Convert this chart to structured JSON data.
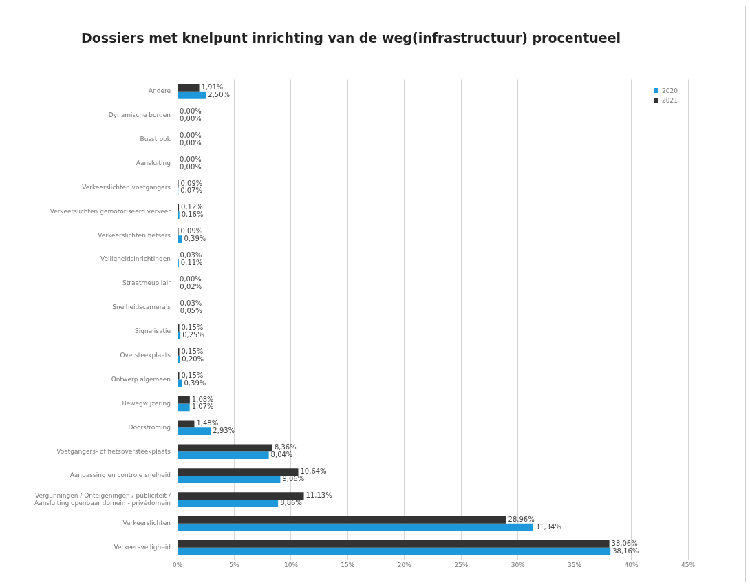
{
  "chart_data": {
    "type": "bar",
    "orientation": "horizontal",
    "title": "Dossiers met knelpunt inrichting van de weg(infrastructuur) procentueel",
    "categories": [
      "Andere",
      "Dynamische borden",
      "Busstrook",
      "Aansluiting",
      "Verkeerslichten voetgangers",
      "Verkeerslichten gemotoriseerd verkeer",
      "Verkeerslichten fietsers",
      "Veiligheidsinrichtingen",
      "Straatmeubilair",
      "Snelheidscamera's",
      "Signalisatie",
      "Oversteekplaats",
      "Ontwerp algemeen",
      "Bewegwijzering",
      "Doorstroming",
      "Voetgangers- of fietsoversteekplaats",
      "Aanpassing en controle snelheid",
      "Vergunningen / Onteigeningen / publiciteit / Aansluiting openbaar domein - privédomein",
      "Verkeerslichten",
      "Verkeersveiligheid"
    ],
    "series": [
      {
        "name": "2021",
        "color": "#333333",
        "values": [
          1.91,
          0,
          0,
          0,
          0.09,
          0.12,
          0.09,
          0.03,
          0,
          0.03,
          0.15,
          0.15,
          0.15,
          1.08,
          1.48,
          8.36,
          10.64,
          11.13,
          28.96,
          38.06
        ],
        "value_labels": [
          "1,91%",
          "0,00%",
          "0,00%",
          "0,00%",
          "0,09%",
          "0,12%",
          "0,09%",
          "0,03%",
          "0,00%",
          "0,03%",
          "0,15%",
          "0,15%",
          "0,15%",
          "1,08%",
          "1,48%",
          "8,36%",
          "10,64%",
          "11,13%",
          "28,96%",
          "38,06%"
        ]
      },
      {
        "name": "2020",
        "color": "#1e98d8",
        "values": [
          2.5,
          0,
          0,
          0,
          0.07,
          0.16,
          0.39,
          0.11,
          0.02,
          0.05,
          0.25,
          0.2,
          0.39,
          1.07,
          2.93,
          8.04,
          9.06,
          8.86,
          31.34,
          38.16
        ],
        "value_labels": [
          "2,50%",
          "0,00%",
          "0,00%",
          "0,00%",
          "0,07%",
          "0,16%",
          "0,39%",
          "0,11%",
          "0,02%",
          "0,05%",
          "0,25%",
          "0,20%",
          "0,39%",
          "1,07%",
          "2,93%",
          "8,04%",
          "9,06%",
          "8,86%",
          "31,34%",
          "38,16%"
        ]
      }
    ],
    "xlim": [
      0,
      45
    ],
    "xticks": [
      {
        "value": 0,
        "label": "0%"
      },
      {
        "value": 5,
        "label": "5%"
      },
      {
        "value": 10,
        "label": "10%"
      },
      {
        "value": 15,
        "label": "15%"
      },
      {
        "value": 20,
        "label": "20%"
      },
      {
        "value": 25,
        "label": "25%"
      },
      {
        "value": 30,
        "label": "30%"
      },
      {
        "value": 35,
        "label": "35%"
      },
      {
        "value": 40,
        "label": "40%"
      },
      {
        "value": 45,
        "label": "45%"
      }
    ],
    "grid": "x",
    "legend": "top right"
  }
}
